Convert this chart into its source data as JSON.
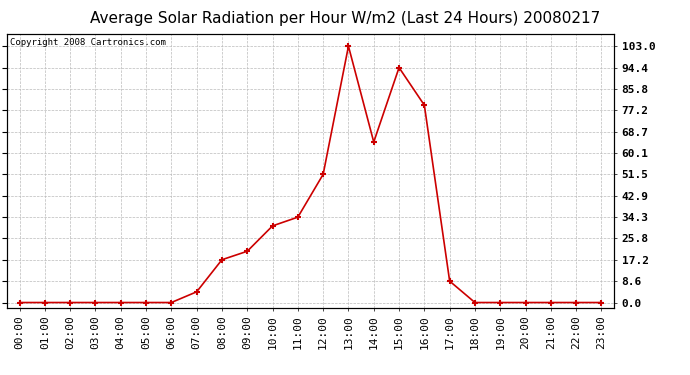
{
  "title": "Average Solar Radiation per Hour W/m2 (Last 24 Hours) 20080217",
  "copyright": "Copyright 2008 Cartronics.com",
  "hours": [
    "00:00",
    "01:00",
    "02:00",
    "03:00",
    "04:00",
    "05:00",
    "06:00",
    "07:00",
    "08:00",
    "09:00",
    "10:00",
    "11:00",
    "12:00",
    "13:00",
    "14:00",
    "15:00",
    "16:00",
    "17:00",
    "18:00",
    "19:00",
    "20:00",
    "21:00",
    "22:00",
    "23:00"
  ],
  "values": [
    0.0,
    0.0,
    0.0,
    0.0,
    0.0,
    0.0,
    0.0,
    4.3,
    17.2,
    20.6,
    30.8,
    34.3,
    51.5,
    103.0,
    64.5,
    94.4,
    79.3,
    8.6,
    0.0,
    0.0,
    0.0,
    0.0,
    0.0,
    0.0
  ],
  "yticks": [
    0.0,
    8.6,
    17.2,
    25.8,
    34.3,
    42.9,
    51.5,
    60.1,
    68.7,
    77.2,
    85.8,
    94.4,
    103.0
  ],
  "ytick_labels": [
    "0.0",
    "8.6",
    "17.2",
    "25.8",
    "34.3",
    "42.9",
    "51.5",
    "60.1",
    "68.7",
    "77.2",
    "85.8",
    "94.4",
    "103.0"
  ],
  "line_color": "#cc0000",
  "marker": "+",
  "background_color": "#ffffff",
  "plot_bg_color": "#ffffff",
  "grid_color": "#bbbbbb",
  "title_fontsize": 11,
  "copyright_fontsize": 6.5,
  "tick_fontsize": 8,
  "ylim": [
    -2,
    108
  ]
}
